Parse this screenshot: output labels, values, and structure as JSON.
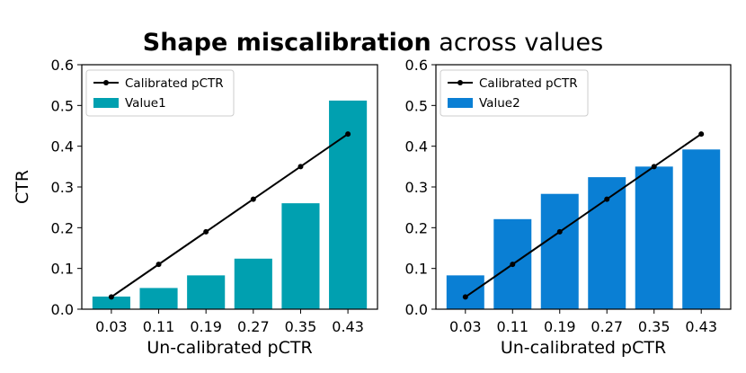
{
  "figure": {
    "title_bold": "Shape miscalibration",
    "title_rest": " across values"
  },
  "chart_data": [
    {
      "type": "bar",
      "title": "Shape miscalibration across values",
      "categories": [
        "0.03",
        "0.11",
        "0.19",
        "0.27",
        "0.35",
        "0.43"
      ],
      "x": [
        0.03,
        0.11,
        0.19,
        0.27,
        0.35,
        0.43
      ],
      "xlabel": "Un-calibrated pCTR",
      "ylabel": "CTR",
      "ylim": [
        0,
        0.6
      ],
      "yticks": [
        0.0,
        0.1,
        0.2,
        0.3,
        0.4,
        0.5,
        0.6
      ],
      "ytick_labels": [
        "0.0",
        "0.1",
        "0.2",
        "0.3",
        "0.4",
        "0.5",
        "0.6"
      ],
      "legend_position": "upper-left",
      "series": [
        {
          "name": "Calibrated pCTR",
          "kind": "line",
          "color": "#000000",
          "values": [
            0.03,
            0.11,
            0.19,
            0.27,
            0.35,
            0.43
          ]
        },
        {
          "name": "Value1",
          "kind": "bar",
          "color": "#00A0B0",
          "values": [
            0.031,
            0.052,
            0.083,
            0.124,
            0.26,
            0.512
          ]
        }
      ]
    },
    {
      "type": "bar",
      "title": "Shape miscalibration across values",
      "categories": [
        "0.03",
        "0.11",
        "0.19",
        "0.27",
        "0.35",
        "0.43"
      ],
      "x": [
        0.03,
        0.11,
        0.19,
        0.27,
        0.35,
        0.43
      ],
      "xlabel": "Un-calibrated pCTR",
      "ylabel": "",
      "ylim": [
        0,
        0.6
      ],
      "yticks": [
        0.0,
        0.1,
        0.2,
        0.3,
        0.4,
        0.5,
        0.6
      ],
      "ytick_labels": [
        "0.0",
        "0.1",
        "0.2",
        "0.3",
        "0.4",
        "0.5",
        "0.6"
      ],
      "legend_position": "upper-left",
      "series": [
        {
          "name": "Calibrated pCTR",
          "kind": "line",
          "color": "#000000",
          "values": [
            0.03,
            0.11,
            0.19,
            0.27,
            0.35,
            0.43
          ]
        },
        {
          "name": "Value2",
          "kind": "bar",
          "color": "#0A7FD4",
          "values": [
            0.083,
            0.221,
            0.283,
            0.324,
            0.35,
            0.392
          ]
        }
      ]
    }
  ]
}
